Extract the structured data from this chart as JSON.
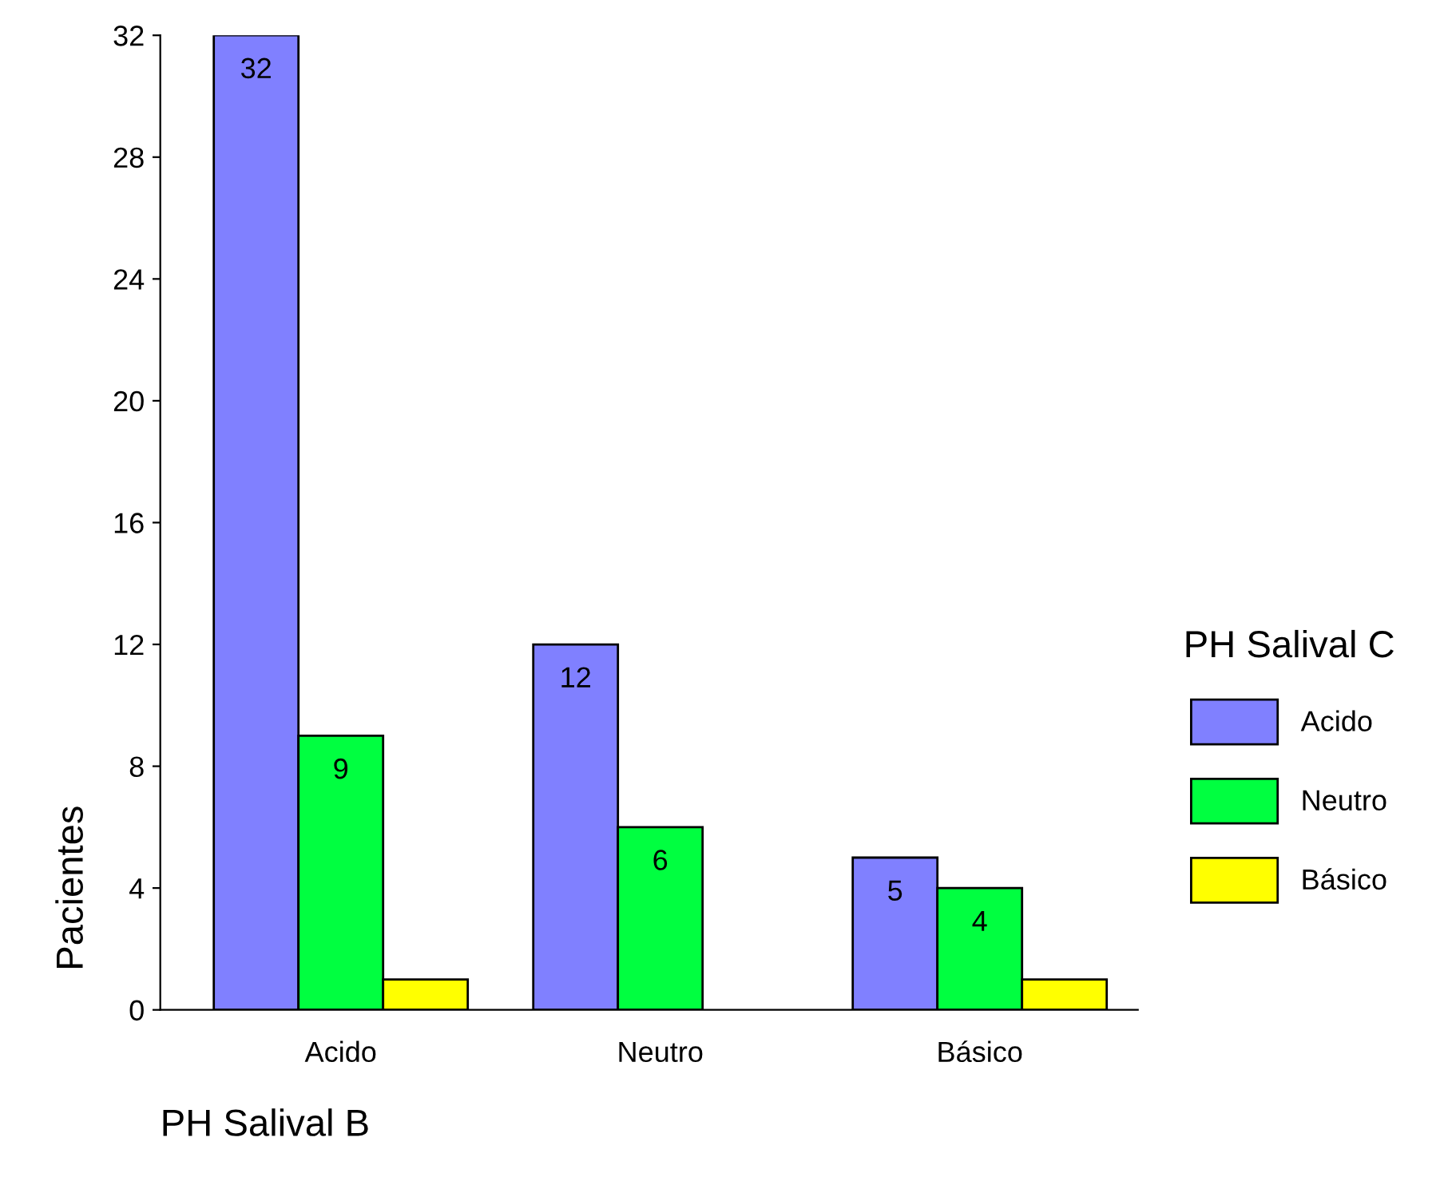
{
  "chart_data": {
    "type": "bar",
    "xlabel": "PH Salival B",
    "ylabel": "Pacientes",
    "legend_title": "PH Salival C",
    "categories": [
      "Acido",
      "Neutro",
      "Básico"
    ],
    "series": [
      {
        "name": "Acido",
        "color": "#8080ff",
        "values": [
          32,
          12,
          5
        ],
        "value_labels": [
          "32",
          "12",
          "5"
        ]
      },
      {
        "name": "Neutro",
        "color": "#00ff40",
        "values": [
          9,
          6,
          4
        ],
        "value_labels": [
          "9",
          "6",
          "4"
        ]
      },
      {
        "name": "Básico",
        "color": "#ffff00",
        "values": [
          1,
          null,
          1
        ],
        "value_labels": [
          null,
          null,
          null
        ]
      }
    ],
    "ylim": [
      0,
      32
    ],
    "yticks": [
      0,
      4,
      8,
      12,
      16,
      20,
      24,
      28,
      32
    ],
    "grid": false,
    "legend": "right"
  }
}
